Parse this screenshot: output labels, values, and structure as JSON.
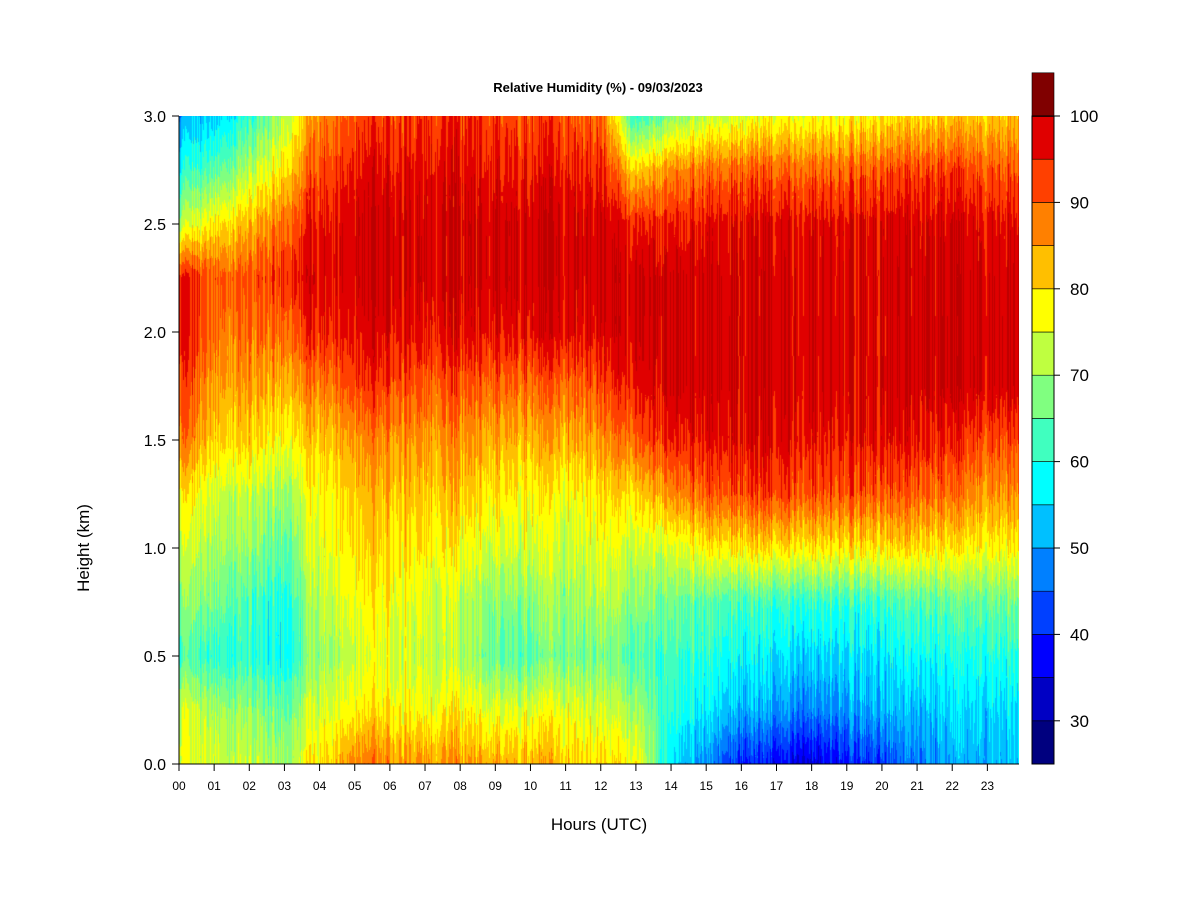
{
  "chart_data": {
    "type": "heatmap",
    "title": "Relative Humidity (%) - 09/03/2023",
    "xlabel": "Hours (UTC)",
    "ylabel": "Height (km)",
    "x_ticks": [
      "00",
      "01",
      "02",
      "03",
      "04",
      "05",
      "06",
      "07",
      "08",
      "09",
      "10",
      "11",
      "12",
      "13",
      "14",
      "15",
      "16",
      "17",
      "18",
      "19",
      "20",
      "21",
      "22",
      "23"
    ],
    "xlim": [
      0,
      23.9
    ],
    "y_ticks": [
      "0.0",
      "0.5",
      "1.0",
      "1.5",
      "2.0",
      "2.5",
      "3.0"
    ],
    "ylim": [
      0,
      3
    ],
    "colorbar": {
      "min": 25,
      "max": 100,
      "step": 5,
      "ticks": [
        "30",
        "40",
        "50",
        "60",
        "70",
        "80",
        "90",
        "100"
      ],
      "colors": [
        "#00007f",
        "#0000c4",
        "#0000ff",
        "#0040ff",
        "#0080ff",
        "#00c0ff",
        "#00ffff",
        "#40ffbf",
        "#80ff80",
        "#bfff40",
        "#ffff00",
        "#ffbf00",
        "#ff8000",
        "#ff4000",
        "#e00000",
        "#bb0000",
        "#800000"
      ]
    },
    "grid": false,
    "legend": "colorbar right",
    "hours": [
      0,
      1,
      2,
      3,
      4,
      5,
      6,
      7,
      8,
      9,
      10,
      11,
      12,
      13,
      14,
      15,
      16,
      17,
      18,
      19,
      20,
      21,
      22,
      23,
      23.9
    ],
    "heights_km": [
      0,
      0.25,
      0.5,
      0.75,
      1,
      1.25,
      1.5,
      1.75,
      2,
      2.25,
      2.5,
      2.75,
      3
    ],
    "rh_values": [
      [
        74,
        73,
        62,
        67,
        72,
        78,
        88,
        92,
        96,
        95,
        70,
        57,
        48
      ],
      [
        75,
        72,
        62,
        68,
        72,
        75,
        82,
        86,
        90,
        92,
        80,
        65,
        55
      ],
      [
        72,
        68,
        60,
        62,
        68,
        72,
        80,
        84,
        88,
        90,
        82,
        70,
        60
      ],
      [
        70,
        66,
        58,
        60,
        65,
        70,
        78,
        84,
        90,
        95,
        90,
        80,
        72
      ],
      [
        80,
        75,
        70,
        73,
        76,
        78,
        82,
        88,
        96,
        98,
        97,
        92,
        88
      ],
      [
        88,
        78,
        74,
        77,
        80,
        82,
        86,
        93,
        97,
        99,
        99,
        96,
        92
      ],
      [
        87,
        79,
        75,
        78,
        80,
        83,
        87,
        93,
        98,
        99,
        99,
        97,
        93
      ],
      [
        86,
        77,
        73,
        75,
        79,
        82,
        86,
        91,
        97,
        99,
        99,
        97,
        94
      ],
      [
        85,
        78,
        71,
        72,
        77,
        82,
        86,
        91,
        97,
        99,
        99,
        97,
        94
      ],
      [
        84,
        75,
        65,
        68,
        74,
        79,
        84,
        90,
        97,
        99,
        99,
        96,
        93
      ],
      [
        83,
        75,
        64,
        68,
        74,
        78,
        83,
        89,
        97,
        99,
        99,
        95,
        92
      ],
      [
        82,
        76,
        67,
        70,
        73,
        77,
        84,
        90,
        98,
        99,
        99,
        96,
        92
      ],
      [
        80,
        74,
        67,
        72,
        76,
        80,
        86,
        92,
        98,
        99,
        99,
        95,
        90
      ],
      [
        78,
        70,
        63,
        68,
        73,
        80,
        90,
        96,
        99,
        99,
        95,
        80,
        60
      ],
      [
        55,
        60,
        62,
        66,
        74,
        86,
        95,
        99,
        99,
        99,
        95,
        86,
        68
      ],
      [
        48,
        56,
        60,
        64,
        78,
        90,
        96,
        99,
        99,
        99,
        96,
        88,
        72
      ],
      [
        40,
        52,
        58,
        63,
        80,
        92,
        98,
        99,
        99,
        99,
        98,
        90,
        75
      ],
      [
        38,
        50,
        56,
        62,
        80,
        93,
        98,
        99,
        99,
        99,
        98,
        90,
        77
      ],
      [
        35,
        48,
        55,
        62,
        80,
        92,
        97,
        99,
        99,
        99,
        98,
        90,
        77
      ],
      [
        40,
        50,
        56,
        62,
        80,
        92,
        97,
        99,
        99,
        99,
        98,
        90,
        78
      ],
      [
        42,
        52,
        56,
        62,
        80,
        91,
        97,
        99,
        99,
        99,
        98,
        91,
        79
      ],
      [
        47,
        52,
        58,
        64,
        80,
        90,
        96,
        99,
        99,
        99,
        98,
        92,
        80
      ],
      [
        50,
        54,
        58,
        64,
        78,
        88,
        94,
        99,
        99,
        99,
        98,
        92,
        81
      ],
      [
        52,
        55,
        60,
        66,
        78,
        86,
        92,
        99,
        99,
        99,
        97,
        91,
        82
      ],
      [
        52,
        55,
        60,
        66,
        78,
        86,
        92,
        99,
        99,
        99,
        97,
        90,
        82
      ]
    ]
  }
}
